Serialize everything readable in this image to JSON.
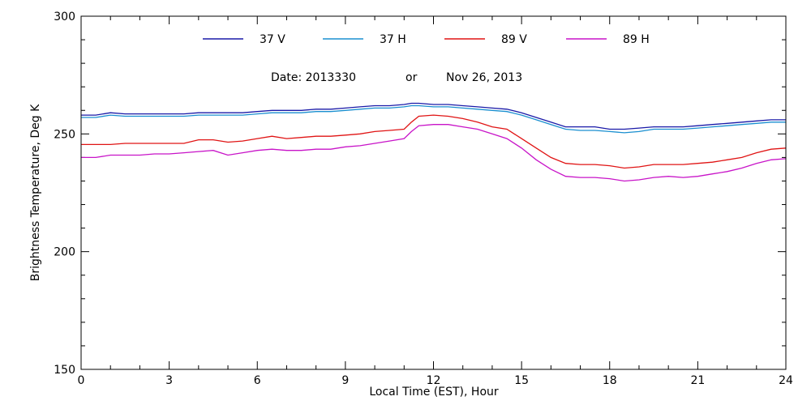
{
  "chart_data": {
    "type": "line",
    "title": "",
    "annotation": {
      "date_label": "Date: 2013330",
      "or_label": "or",
      "date_text": "Nov 26, 2013"
    },
    "xlabel": "Local Time (EST), Hour",
    "ylabel": "Brightness Temperature, Deg K",
    "xlim": [
      0,
      24
    ],
    "ylim": [
      150,
      300
    ],
    "xticks": [
      0,
      3,
      6,
      9,
      12,
      15,
      18,
      21,
      24
    ],
    "yticks": [
      150,
      200,
      250,
      300
    ],
    "xtick_labels": [
      "0",
      "3",
      "6",
      "9",
      "12",
      "15",
      "18",
      "21",
      "24"
    ],
    "ytick_labels": [
      "150",
      "200",
      "250",
      "300"
    ],
    "x_minor_step": 1,
    "y_minor_step": 10,
    "legend_position": "top",
    "x": [
      0,
      0.5,
      1,
      1.5,
      2,
      2.5,
      3,
      3.5,
      4,
      4.5,
      5,
      5.5,
      6,
      6.5,
      7,
      7.5,
      8,
      8.5,
      9,
      9.5,
      10,
      10.5,
      11,
      11.25,
      11.5,
      12,
      12.5,
      13,
      13.5,
      14,
      14.5,
      15,
      15.5,
      16,
      16.5,
      17,
      17.5,
      18,
      18.5,
      19,
      19.5,
      20,
      20.5,
      21,
      21.5,
      22,
      22.5,
      23,
      23.5,
      24
    ],
    "series": [
      {
        "name": "37 V",
        "color": "#1a1aa8",
        "values": [
          258,
          258,
          259,
          258.5,
          258.5,
          258.5,
          258.5,
          258.5,
          259,
          259,
          259,
          259,
          259.5,
          260,
          260,
          260,
          260.5,
          260.5,
          261,
          261.5,
          262,
          262,
          262.5,
          263,
          263,
          262.5,
          262.5,
          262,
          261.5,
          261,
          260.5,
          259,
          257,
          255,
          253,
          253,
          253,
          252,
          252,
          252.5,
          253,
          253,
          253,
          253.5,
          254,
          254.5,
          255,
          255.5,
          256,
          256
        ]
      },
      {
        "name": "37 H",
        "color": "#1a8fd0",
        "values": [
          257,
          257,
          258,
          257.5,
          257.5,
          257.5,
          257.5,
          257.5,
          258,
          258,
          258,
          258,
          258.5,
          259,
          259,
          259,
          259.5,
          259.5,
          260,
          260.5,
          261,
          261,
          261.5,
          262,
          262,
          261.5,
          261.5,
          261,
          260.5,
          260,
          259.5,
          258,
          256,
          254,
          252,
          251.5,
          251.5,
          251,
          250.5,
          251,
          252,
          252,
          252,
          252.5,
          253,
          253.5,
          254,
          254.5,
          255,
          255
        ]
      },
      {
        "name": "89 V",
        "color": "#e01414",
        "values": [
          245.5,
          245.5,
          245.5,
          246,
          246,
          246,
          246,
          246,
          247.5,
          247.5,
          246.5,
          247,
          248,
          249,
          248,
          248.5,
          249,
          249,
          249.5,
          250,
          251,
          251.5,
          252,
          255,
          257.5,
          258,
          257.5,
          256.5,
          255,
          253,
          252,
          248,
          244,
          240,
          237.5,
          237,
          237,
          236.5,
          235.5,
          236,
          237,
          237,
          237,
          237.5,
          238,
          239,
          240,
          242,
          243.5,
          244
        ]
      },
      {
        "name": "89 H",
        "color": "#c814c8",
        "values": [
          240,
          240,
          241,
          241,
          241,
          241.5,
          241.5,
          242,
          242.5,
          243,
          241,
          242,
          243,
          243.5,
          243,
          243,
          243.5,
          243.5,
          244.5,
          245,
          246,
          247,
          248,
          251,
          253.5,
          254,
          254,
          253,
          252,
          250,
          248,
          244,
          239,
          235,
          232,
          231.5,
          231.5,
          231,
          230,
          230.5,
          231.5,
          232,
          231.5,
          232,
          233,
          234,
          235.5,
          237.5,
          239,
          239.5
        ]
      }
    ]
  }
}
